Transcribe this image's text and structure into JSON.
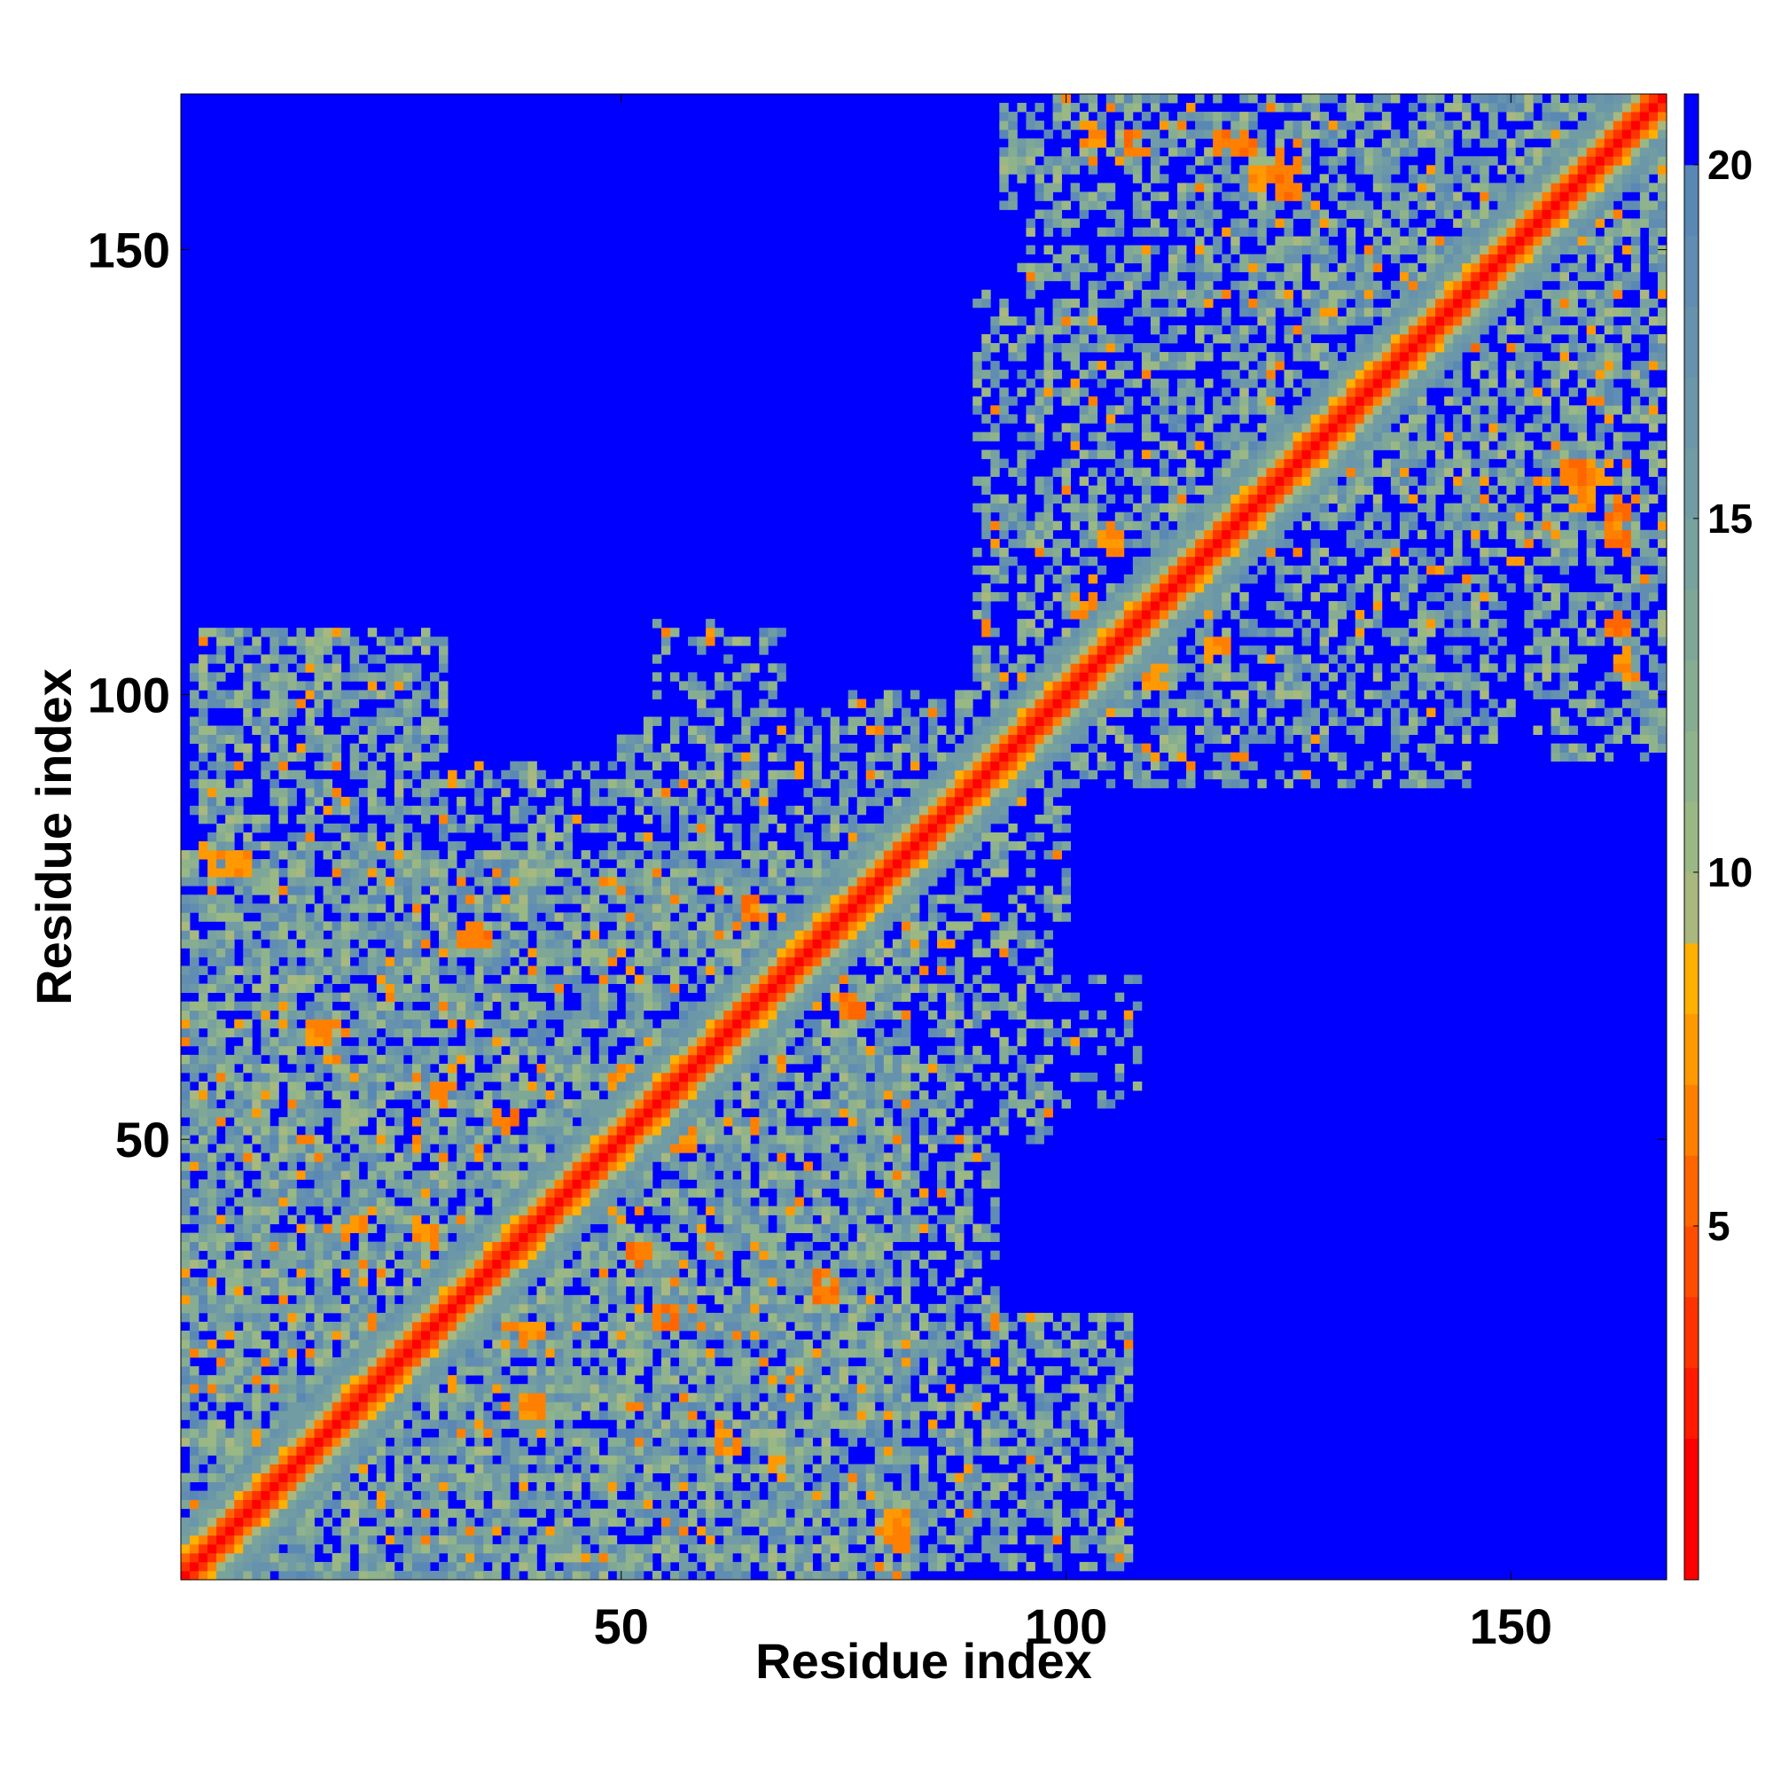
{
  "chart_data": {
    "type": "heatmap",
    "title": "",
    "xlabel": "Residue index",
    "ylabel": "Residue index",
    "n_residues": 167,
    "xlim": [
      1,
      167
    ],
    "ylim": [
      1,
      167
    ],
    "x_ticks": [
      50,
      100,
      150
    ],
    "y_ticks": [
      50,
      100,
      150
    ],
    "colorbar": {
      "range": [
        0,
        21
      ],
      "ticks": [
        5,
        10,
        15,
        20
      ],
      "levels": [
        {
          "lo": 0,
          "hi": 2,
          "color": "#ff0000"
        },
        {
          "lo": 2,
          "hi": 3,
          "color": "#ff1a00"
        },
        {
          "lo": 3,
          "hi": 4,
          "color": "#ff3300"
        },
        {
          "lo": 4,
          "hi": 5,
          "color": "#ff4d00"
        },
        {
          "lo": 5,
          "hi": 6,
          "color": "#ff6600"
        },
        {
          "lo": 6,
          "hi": 7,
          "color": "#ff8000"
        },
        {
          "lo": 7,
          "hi": 8,
          "color": "#ff9900"
        },
        {
          "lo": 8,
          "hi": 9,
          "color": "#ffb000"
        },
        {
          "lo": 9,
          "hi": 10,
          "color": "#a8b87e"
        },
        {
          "lo": 10,
          "hi": 11,
          "color": "#9ab884"
        },
        {
          "lo": 11,
          "hi": 12,
          "color": "#8fb38c"
        },
        {
          "lo": 12,
          "hi": 13,
          "color": "#86ad92"
        },
        {
          "lo": 13,
          "hi": 14,
          "color": "#7ea798"
        },
        {
          "lo": 14,
          "hi": 15,
          "color": "#78a29d"
        },
        {
          "lo": 15,
          "hi": 16,
          "color": "#719ca3"
        },
        {
          "lo": 16,
          "hi": 17,
          "color": "#6b97a8"
        },
        {
          "lo": 17,
          "hi": 18,
          "color": "#6692ad"
        },
        {
          "lo": 18,
          "hi": 19,
          "color": "#608db1"
        },
        {
          "lo": 19,
          "hi": 20,
          "color": "#5a88b4"
        },
        {
          "lo": 20,
          "hi": 21,
          "color": "#0000ff"
        }
      ]
    },
    "diagonal": {
      "near_color": "#ff0000",
      "offdiag_color": "#ff6600"
    },
    "background_color": "#0000ff",
    "grid": false,
    "legend": "colorbar right",
    "contact_regions": [
      {
        "x": [
          1,
          82
        ],
        "y": [
          1,
          82
        ],
        "density": 0.78
      },
      {
        "x": [
          3,
          30
        ],
        "y": [
          55,
          107
        ],
        "density": 0.62
      },
      {
        "x": [
          28,
          65
        ],
        "y": [
          60,
          92
        ],
        "density": 0.5
      },
      {
        "x": [
          50,
          82
        ],
        "y": [
          75,
          98
        ],
        "density": 0.45
      },
      {
        "x": [
          58,
          82
        ],
        "y": [
          1,
          35
        ],
        "density": 0.5
      },
      {
        "x": [
          72,
          107
        ],
        "y": [
          2,
          28
        ],
        "density": 0.55
      },
      {
        "x": [
          82,
          108
        ],
        "y": [
          54,
          68
        ],
        "density": 0.35
      },
      {
        "x": [
          78,
          100
        ],
        "y": [
          75,
          100
        ],
        "density": 0.5
      },
      {
        "x": [
          90,
          125
        ],
        "y": [
          98,
          122
        ],
        "density": 0.55
      },
      {
        "x": [
          90,
          110
        ],
        "y": [
          120,
          145
        ],
        "density": 0.35
      },
      {
        "x": [
          115,
          150
        ],
        "y": [
          95,
          148
        ],
        "density": 0.5
      },
      {
        "x": [
          123,
          163
        ],
        "y": [
          120,
          167
        ],
        "density": 0.65
      },
      {
        "x": [
          152,
          167
        ],
        "y": [
          96,
          140
        ],
        "density": 0.55
      },
      {
        "x": [
          93,
          118
        ],
        "y": [
          155,
          167
        ],
        "density": 0.5
      },
      {
        "x": [
          115,
          155
        ],
        "y": [
          150,
          167
        ],
        "density": 0.6
      }
    ],
    "hot_spots": [
      {
        "x": 7,
        "y": 81,
        "value": 7
      },
      {
        "x": 34,
        "y": 73,
        "value": 6
      },
      {
        "x": 81,
        "y": 5,
        "value": 7
      },
      {
        "x": 73,
        "y": 33,
        "value": 6
      },
      {
        "x": 79,
        "y": 78,
        "value": 6
      },
      {
        "x": 70,
        "y": 68,
        "value": 7
      },
      {
        "x": 65,
        "y": 76,
        "value": 6
      },
      {
        "x": 59,
        "y": 60,
        "value": 7
      },
      {
        "x": 57,
        "y": 50,
        "value": 7
      },
      {
        "x": 46,
        "y": 43,
        "value": 6
      },
      {
        "x": 125,
        "y": 157,
        "value": 6
      },
      {
        "x": 122,
        "y": 158,
        "value": 7
      },
      {
        "x": 118,
        "y": 162,
        "value": 6
      },
      {
        "x": 158,
        "y": 155,
        "value": 7
      },
      {
        "x": 160,
        "y": 125,
        "value": 7
      },
      {
        "x": 162,
        "y": 120,
        "value": 6
      },
      {
        "x": 163,
        "y": 103,
        "value": 7
      },
      {
        "x": 162,
        "y": 108,
        "value": 6
      },
      {
        "x": 102,
        "y": 110,
        "value": 7
      },
      {
        "x": 110,
        "y": 113,
        "value": 6
      },
      {
        "x": 105,
        "y": 117,
        "value": 7
      },
      {
        "x": 140,
        "y": 145,
        "value": 6
      },
      {
        "x": 14,
        "y": 18,
        "value": 7
      },
      {
        "x": 10,
        "y": 12,
        "value": 6
      },
      {
        "x": 20,
        "y": 40,
        "value": 7
      },
      {
        "x": 30,
        "y": 55,
        "value": 6
      },
      {
        "x": 40,
        "y": 28,
        "value": 7
      },
      {
        "x": 52,
        "y": 37,
        "value": 6
      },
      {
        "x": 62,
        "y": 16,
        "value": 7
      }
    ]
  }
}
